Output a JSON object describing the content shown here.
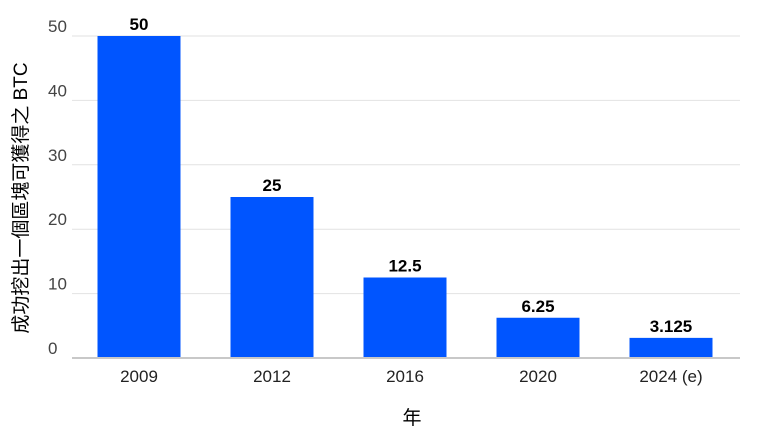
{
  "chart_data": {
    "type": "bar",
    "title": "",
    "xlabel": "年",
    "ylabel": "成功挖出一個區塊可獲得之 BTC",
    "categories": [
      "2009",
      "2012",
      "2016",
      "2020",
      "2024 (e)"
    ],
    "series": [
      {
        "values": [
          50,
          25,
          12.5,
          6.25,
          3.125
        ],
        "value_labels": [
          "50",
          "25",
          "12.5",
          "6.25",
          "3.125"
        ],
        "color": "#0055ff"
      }
    ],
    "ylim": [
      0,
      50
    ],
    "yticks": [
      0,
      10,
      20,
      30,
      40,
      50
    ],
    "ytick_labels": [
      "0",
      "10",
      "20",
      "30",
      "40",
      "50"
    ],
    "grid": true,
    "legend": "none"
  }
}
